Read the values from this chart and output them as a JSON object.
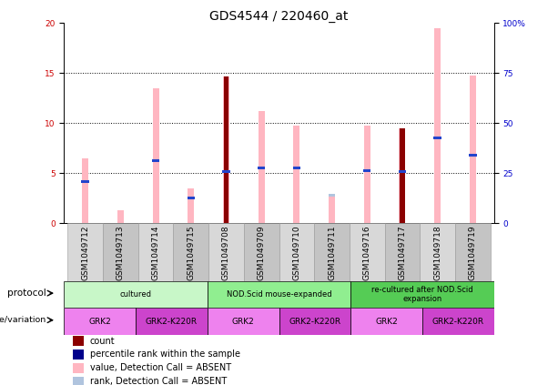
{
  "title": "GDS4544 / 220460_at",
  "samples": [
    "GSM1049712",
    "GSM1049713",
    "GSM1049714",
    "GSM1049715",
    "GSM1049708",
    "GSM1049709",
    "GSM1049710",
    "GSM1049711",
    "GSM1049716",
    "GSM1049717",
    "GSM1049718",
    "GSM1049719"
  ],
  "pink_values": [
    6.5,
    1.3,
    13.5,
    3.5,
    14.7,
    11.2,
    9.8,
    2.9,
    9.8,
    9.5,
    19.5,
    14.8
  ],
  "red_values": [
    0,
    0,
    0,
    0,
    14.7,
    0,
    0,
    0,
    0,
    9.5,
    0,
    0
  ],
  "blue_rank": [
    4.2,
    0,
    6.3,
    2.5,
    5.2,
    5.5,
    5.5,
    0,
    5.3,
    5.2,
    8.5,
    6.8
  ],
  "light_blue_vals": [
    4.2,
    0,
    6.3,
    2.5,
    5.2,
    5.5,
    5.5,
    2.8,
    5.3,
    5.2,
    8.5,
    6.8
  ],
  "ylim_left": [
    0,
    20
  ],
  "ylim_right": [
    0,
    100
  ],
  "yticks_left": [
    0,
    5,
    10,
    15,
    20
  ],
  "yticks_right": [
    0,
    25,
    50,
    75,
    100
  ],
  "proto_defs": [
    [
      0,
      4,
      "#c8f7c8",
      "cultured"
    ],
    [
      4,
      8,
      "#90ee90",
      "NOD.Scid mouse-expanded"
    ],
    [
      8,
      12,
      "#55cc55",
      "re-cultured after NOD.Scid\nexpansion"
    ]
  ],
  "geno_defs": [
    [
      0,
      2,
      "#ee82ee",
      "GRK2"
    ],
    [
      2,
      4,
      "#cc44cc",
      "GRK2-K220R"
    ],
    [
      4,
      6,
      "#ee82ee",
      "GRK2"
    ],
    [
      6,
      8,
      "#cc44cc",
      "GRK2-K220R"
    ],
    [
      8,
      10,
      "#ee82ee",
      "GRK2"
    ],
    [
      10,
      12,
      "#cc44cc",
      "GRK2-K220R"
    ]
  ],
  "legend_items": [
    {
      "label": "count",
      "color": "#8b0000"
    },
    {
      "label": "percentile rank within the sample",
      "color": "#00008b"
    },
    {
      "label": "value, Detection Call = ABSENT",
      "color": "#ffb6c1"
    },
    {
      "label": "rank, Detection Call = ABSENT",
      "color": "#b0c4de"
    }
  ],
  "title_fontsize": 10,
  "tick_fontsize": 6.5,
  "label_fontsize": 7.5
}
